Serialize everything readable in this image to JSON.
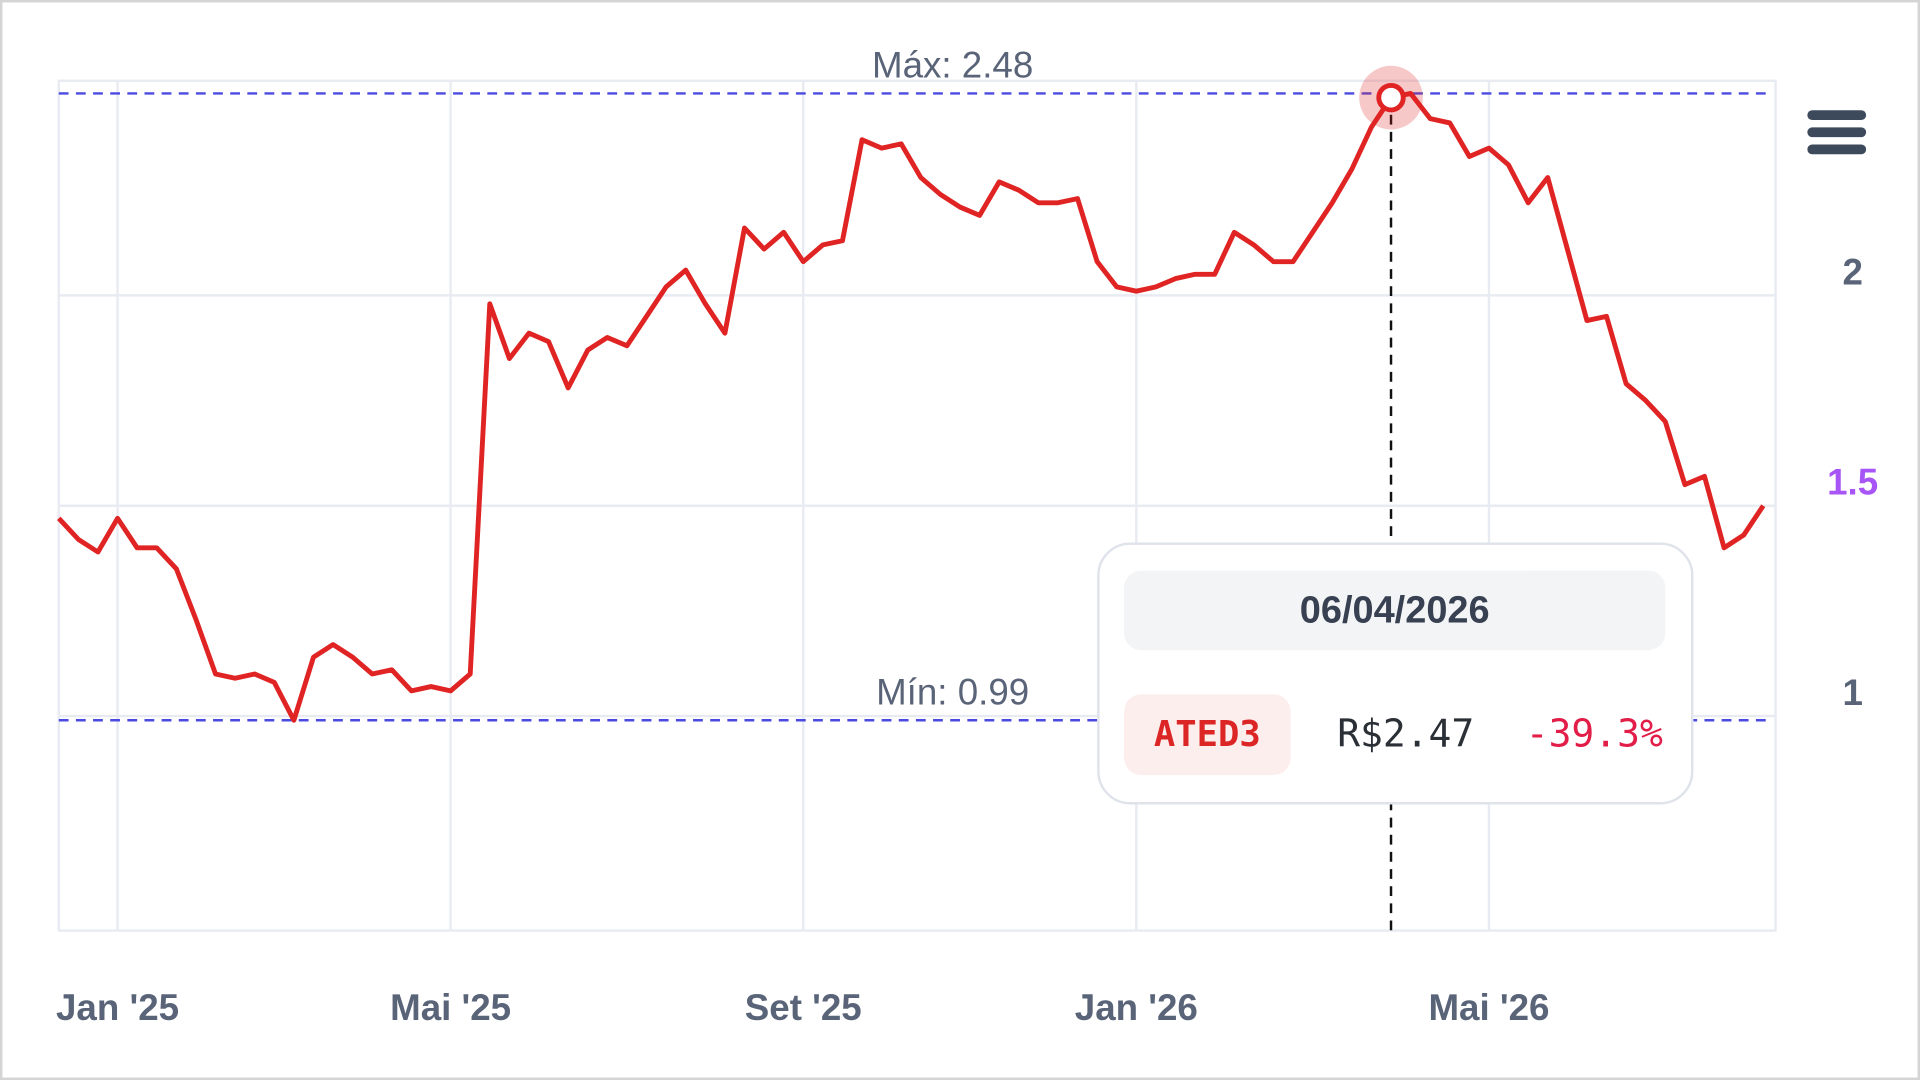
{
  "chart_data": {
    "type": "line",
    "categories": [
      null,
      null,
      null,
      "Jan '25",
      null,
      null,
      null,
      null,
      null,
      null,
      null,
      null,
      null,
      null,
      null,
      null,
      null,
      null,
      null,
      null,
      "Mai '25",
      null,
      null,
      null,
      null,
      null,
      null,
      null,
      null,
      null,
      null,
      null,
      null,
      null,
      null,
      null,
      null,
      null,
      "Set '25",
      null,
      null,
      null,
      null,
      null,
      null,
      null,
      null,
      null,
      null,
      null,
      null,
      null,
      null,
      null,
      null,
      "Jan '26",
      null,
      null,
      null,
      null,
      null,
      null,
      null,
      null,
      null,
      null,
      null,
      null,
      null,
      null,
      null,
      null,
      null,
      "Mai '26",
      null,
      null,
      null,
      null,
      null,
      null,
      null,
      null,
      null,
      null,
      null,
      null,
      null,
      null
    ],
    "values": [
      1.47,
      1.42,
      1.39,
      1.47,
      1.4,
      1.4,
      1.35,
      1.23,
      1.1,
      1.09,
      1.1,
      1.08,
      0.99,
      1.14,
      1.17,
      1.14,
      1.1,
      1.11,
      1.06,
      1.07,
      1.06,
      1.1,
      1.98,
      1.85,
      1.91,
      1.89,
      1.78,
      1.87,
      1.9,
      1.88,
      1.95,
      2.02,
      2.06,
      1.98,
      1.91,
      2.16,
      2.11,
      2.15,
      2.08,
      2.12,
      2.13,
      2.37,
      2.35,
      2.36,
      2.28,
      2.24,
      2.21,
      2.19,
      2.27,
      2.25,
      2.22,
      2.22,
      2.23,
      2.08,
      2.02,
      2.01,
      2.02,
      2.04,
      2.05,
      2.05,
      2.15,
      2.12,
      2.08,
      2.08,
      2.15,
      2.22,
      2.3,
      2.4,
      2.47,
      2.48,
      2.42,
      2.41,
      2.33,
      2.35,
      2.31,
      2.22,
      2.28,
      2.11,
      1.94,
      1.95,
      1.79,
      1.75,
      1.7,
      1.55,
      1.57,
      1.4,
      1.43,
      1.5
    ],
    "color": "#e02424",
    "ylim": [
      0.49,
      2.51
    ],
    "yticks": [
      1,
      1.5,
      2
    ],
    "ytick_colors": [
      "#5a6478",
      "#a855f7",
      "#5a6478"
    ],
    "grid": true,
    "annotations": [
      {
        "label": "Máx: 2.48",
        "value": 2.48,
        "color": "#4a4ae0"
      },
      {
        "label": "Mín: 0.99",
        "value": 0.99,
        "color": "#4a4ae0"
      }
    ],
    "tooltip": {
      "date": "06/04/2026",
      "ticker": "ATED3",
      "price": "R$2.47",
      "change": "-39.3%"
    }
  }
}
